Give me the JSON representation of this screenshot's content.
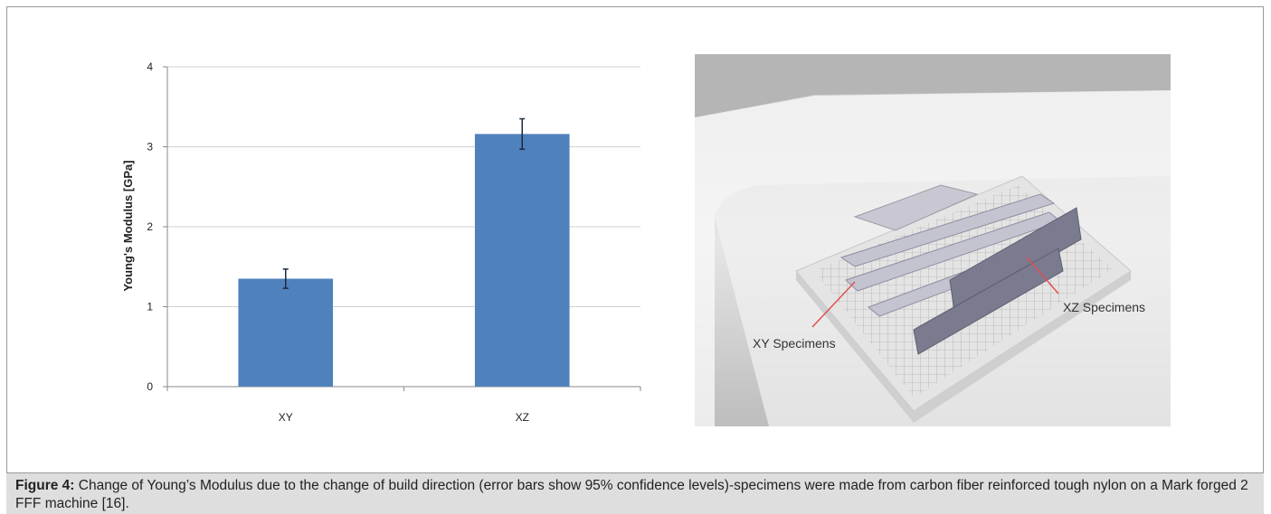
{
  "chart_data": {
    "type": "bar",
    "y_label": "Young's Modulus [GPa]",
    "categories": [
      "XY",
      "XZ"
    ],
    "values": [
      1.35,
      3.16
    ],
    "errors": [
      0.12,
      0.19
    ],
    "color": "#4f81bd",
    "ylim": [
      0,
      4
    ],
    "yticks": [
      0,
      1,
      2,
      3,
      4
    ],
    "grid": true
  },
  "image_labels": [
    "XY Specimens",
    "XZ Specimens"
  ],
  "caption": {
    "label": "Figure 4:",
    "text": "Change of Young’s Modulus due to the change of build direction (error bars show 95% confidence levels)-specimens were made from carbon fiber reinforced tough nylon on a Mark forged 2 FFF machine [16]."
  }
}
